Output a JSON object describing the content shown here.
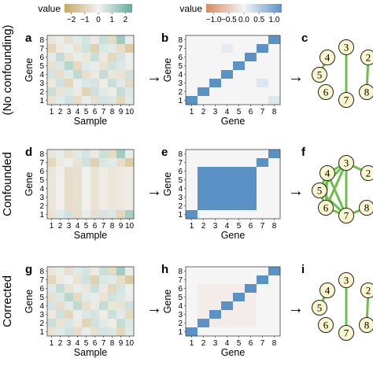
{
  "legends": {
    "left": {
      "title": "value",
      "ticks": [
        "−2",
        "−1",
        "0",
        "1",
        "2"
      ],
      "colors": [
        "#c9a85b",
        "#f2f2f2",
        "#5fae9b"
      ]
    },
    "right": {
      "title": "value",
      "ticks": [
        "−1.0",
        "−0.5",
        "0.0",
        "0.5",
        "1.0"
      ],
      "colors": [
        "#d98a5e",
        "#f5f5f5",
        "#5b92c6"
      ]
    }
  },
  "rows": [
    {
      "row_label": "(No confounding)",
      "panels": {
        "data": {
          "letter": "a",
          "xlabel": "Sample",
          "ylabel": "Gene"
        },
        "corr": {
          "letter": "b",
          "xlabel": "Gene",
          "ylabel": "Gene"
        },
        "net": {
          "letter": "c"
        }
      }
    },
    {
      "row_label": "Confounded",
      "panels": {
        "data": {
          "letter": "d",
          "xlabel": "Sample",
          "ylabel": "Gene"
        },
        "corr": {
          "letter": "e",
          "xlabel": "Gene",
          "ylabel": "Gene"
        },
        "net": {
          "letter": "f"
        }
      }
    },
    {
      "row_label": "Corrected",
      "panels": {
        "data": {
          "letter": "g",
          "xlabel": "Sample",
          "ylabel": "Gene"
        },
        "corr": {
          "letter": "h",
          "xlabel": "Gene",
          "ylabel": "Gene"
        },
        "net": {
          "letter": "i"
        }
      }
    }
  ],
  "sample_ticks": [
    "1",
    "2",
    "3",
    "4",
    "5",
    "6",
    "7",
    "8",
    "9",
    "10"
  ],
  "gene_ticks": [
    "1",
    "2",
    "3",
    "4",
    "5",
    "6",
    "7",
    "8"
  ],
  "arrow_glyph": "→",
  "chart_data": [
    {
      "type": "heatmap",
      "panel": "a",
      "xlabel": "Sample",
      "ylabel": "Gene",
      "clim": [
        -2.5,
        2.5
      ],
      "rows_top_to_bottom": [
        [
          -0.4,
          0.2,
          -0.6,
          0.3,
          0.5,
          -0.3,
          0.7,
          -0.8,
          1.4,
          0.2
        ],
        [
          -0.9,
          -0.3,
          0.1,
          -0.5,
          0.6,
          -1.1,
          0.4,
          0.3,
          -0.7,
          -1.3
        ],
        [
          0.3,
          0.8,
          -0.5,
          0.2,
          -0.4,
          0.7,
          -0.3,
          -0.9,
          0.5,
          0.1
        ],
        [
          -0.6,
          0.4,
          1.0,
          -0.8,
          0.3,
          0.2,
          -0.5,
          0.6,
          0.4,
          -0.2
        ],
        [
          0.5,
          -0.7,
          0.3,
          0.9,
          -0.6,
          -0.3,
          0.8,
          -0.4,
          -0.5,
          0.6
        ],
        [
          -0.3,
          0.6,
          -0.9,
          0.2,
          0.4,
          0.5,
          -0.2,
          0.7,
          0.3,
          -0.8
        ],
        [
          0.7,
          -0.5,
          0.4,
          -0.3,
          -1.0,
          0.6,
          0.3,
          -0.2,
          0.8,
          0.4
        ],
        [
          -0.5,
          0.3,
          0.6,
          -0.7,
          0.2,
          -0.6,
          0.5,
          0.4,
          -0.9,
          0.3
        ]
      ]
    },
    {
      "type": "heatmap",
      "panel": "b",
      "xlabel": "Gene",
      "ylabel": "Gene",
      "clim": [
        -1,
        1
      ],
      "rows_top_to_bottom": [
        [
          0,
          0,
          0,
          0,
          0,
          0,
          0,
          1
        ],
        [
          0,
          0,
          0,
          0.1,
          0,
          0,
          1,
          0
        ],
        [
          0,
          0,
          0,
          0,
          0,
          1,
          0,
          0
        ],
        [
          0,
          0,
          0,
          0,
          1,
          0,
          0,
          0
        ],
        [
          0,
          0,
          0,
          1,
          0,
          0,
          0,
          0
        ],
        [
          0,
          0,
          1,
          0,
          0,
          0,
          0.15,
          0
        ],
        [
          0,
          1,
          0,
          0,
          0,
          0,
          0,
          0
        ],
        [
          1,
          0,
          0,
          0,
          0,
          0,
          0,
          0.15
        ]
      ]
    },
    {
      "type": "heatmap",
      "panel": "d",
      "xlabel": "Sample",
      "ylabel": "Gene",
      "clim": [
        -2.5,
        2.5
      ],
      "rows_top_to_bottom": [
        [
          -0.4,
          0.2,
          -0.6,
          0.3,
          0.5,
          -0.3,
          0.7,
          -0.8,
          1.4,
          0.2
        ],
        [
          -0.9,
          -0.3,
          0.1,
          -0.5,
          0.6,
          -1.1,
          0.4,
          0.3,
          -0.7,
          -1.3
        ],
        [
          -0.4,
          -0.1,
          -0.7,
          -0.6,
          -0.1,
          -0.5,
          -0.2,
          -0.4,
          -0.3,
          -0.2
        ],
        [
          -0.4,
          -0.1,
          -0.7,
          -0.6,
          -0.1,
          -0.5,
          -0.2,
          -0.4,
          -0.3,
          -0.2
        ],
        [
          -0.4,
          -0.1,
          -0.7,
          -0.6,
          -0.1,
          -0.5,
          -0.2,
          -0.4,
          -0.3,
          -0.2
        ],
        [
          -0.4,
          -0.1,
          -0.7,
          -0.6,
          -0.1,
          -0.5,
          -0.2,
          -0.4,
          -0.3,
          -0.2
        ],
        [
          -0.4,
          -0.1,
          -0.7,
          -0.6,
          -0.1,
          -0.5,
          -0.2,
          -0.4,
          -0.3,
          -0.2
        ],
        [
          -0.5,
          0.3,
          0.6,
          -0.7,
          0.2,
          -0.6,
          0.5,
          0.4,
          -0.9,
          1.3
        ]
      ]
    },
    {
      "type": "heatmap",
      "panel": "e",
      "xlabel": "Gene",
      "ylabel": "Gene",
      "clim": [
        -1,
        1
      ],
      "rows_top_to_bottom": [
        [
          0,
          0,
          0,
          0,
          0,
          0,
          0,
          1
        ],
        [
          0,
          0,
          0,
          0,
          0,
          0,
          1,
          0
        ],
        [
          0,
          1,
          1,
          1,
          1,
          1,
          0,
          0
        ],
        [
          0,
          1,
          1,
          1,
          1,
          1,
          0,
          0
        ],
        [
          0,
          1,
          1,
          1,
          1,
          1,
          0,
          0
        ],
        [
          0,
          1,
          1,
          1,
          1,
          1,
          0,
          0
        ],
        [
          0,
          1,
          1,
          1,
          1,
          1,
          0,
          0
        ],
        [
          1,
          0,
          0,
          0,
          0,
          0,
          0,
          0
        ]
      ]
    },
    {
      "type": "heatmap",
      "panel": "g",
      "xlabel": "Sample",
      "ylabel": "Gene",
      "clim": [
        -2.5,
        2.5
      ],
      "rows_top_to_bottom": [
        [
          -0.4,
          0.2,
          -0.6,
          0.3,
          0.5,
          -0.3,
          0.7,
          -0.8,
          1.4,
          0.2
        ],
        [
          -0.9,
          -0.3,
          0.1,
          -0.5,
          0.6,
          -1.1,
          0.4,
          0.3,
          -0.7,
          -1.3
        ],
        [
          0.3,
          0.8,
          -0.5,
          0.2,
          -0.4,
          0.7,
          -0.3,
          -0.9,
          0.5,
          0.1
        ],
        [
          -0.6,
          0.4,
          1.0,
          -0.8,
          0.3,
          0.2,
          -0.5,
          0.6,
          0.4,
          -0.2
        ],
        [
          0.5,
          -0.7,
          0.3,
          0.9,
          -0.6,
          -0.3,
          0.8,
          -0.4,
          -0.5,
          0.6
        ],
        [
          -0.3,
          0.6,
          -0.9,
          0.2,
          0.4,
          0.5,
          -0.2,
          0.7,
          0.3,
          -0.8
        ],
        [
          0.7,
          -0.5,
          0.4,
          -0.3,
          -1.0,
          0.6,
          0.3,
          -0.2,
          0.8,
          0.4
        ],
        [
          -0.5,
          0.3,
          0.6,
          -0.7,
          0.2,
          -0.6,
          0.5,
          0.4,
          -0.9,
          0.3
        ]
      ]
    },
    {
      "type": "heatmap",
      "panel": "h",
      "xlabel": "Gene",
      "ylabel": "Gene",
      "clim": [
        -1,
        1
      ],
      "rows_top_to_bottom": [
        [
          0,
          0,
          0,
          0,
          0,
          0,
          0,
          1
        ],
        [
          0,
          0,
          0,
          0,
          0,
          0,
          1,
          0
        ],
        [
          0,
          -0.08,
          -0.08,
          -0.08,
          -0.08,
          1,
          0,
          0
        ],
        [
          0,
          -0.08,
          -0.08,
          -0.08,
          1,
          -0.08,
          0,
          0
        ],
        [
          0,
          -0.08,
          -0.08,
          1,
          -0.08,
          -0.08,
          0,
          0
        ],
        [
          0,
          -0.08,
          1,
          -0.08,
          -0.08,
          -0.08,
          0,
          0
        ],
        [
          0,
          1,
          -0.08,
          -0.08,
          -0.08,
          -0.08,
          0,
          0
        ],
        [
          1,
          0,
          0,
          0,
          0,
          0,
          0,
          0
        ]
      ]
    }
  ],
  "networks": [
    {
      "panel": "c",
      "nodes": [
        "4",
        "3",
        "2",
        "5",
        "6",
        "7",
        "8"
      ],
      "edges": [
        [
          "4",
          "5"
        ],
        [
          "3",
          "7"
        ],
        [
          "2",
          "8"
        ]
      ]
    },
    {
      "panel": "f",
      "nodes": [
        "4",
        "3",
        "2",
        "5",
        "6",
        "7",
        "8"
      ],
      "edges": [
        [
          "4",
          "3"
        ],
        [
          "4",
          "5"
        ],
        [
          "4",
          "6"
        ],
        [
          "4",
          "7"
        ],
        [
          "3",
          "5"
        ],
        [
          "3",
          "6"
        ],
        [
          "3",
          "7"
        ],
        [
          "5",
          "6"
        ],
        [
          "5",
          "7"
        ],
        [
          "6",
          "7"
        ],
        [
          "3",
          "2"
        ],
        [
          "7",
          "8"
        ]
      ]
    },
    {
      "panel": "i",
      "nodes": [
        "4",
        "3",
        "2",
        "5",
        "6",
        "7",
        "8"
      ],
      "edges": [
        [
          "4",
          "5"
        ],
        [
          "3",
          "7"
        ],
        [
          "2",
          "8"
        ]
      ]
    }
  ]
}
